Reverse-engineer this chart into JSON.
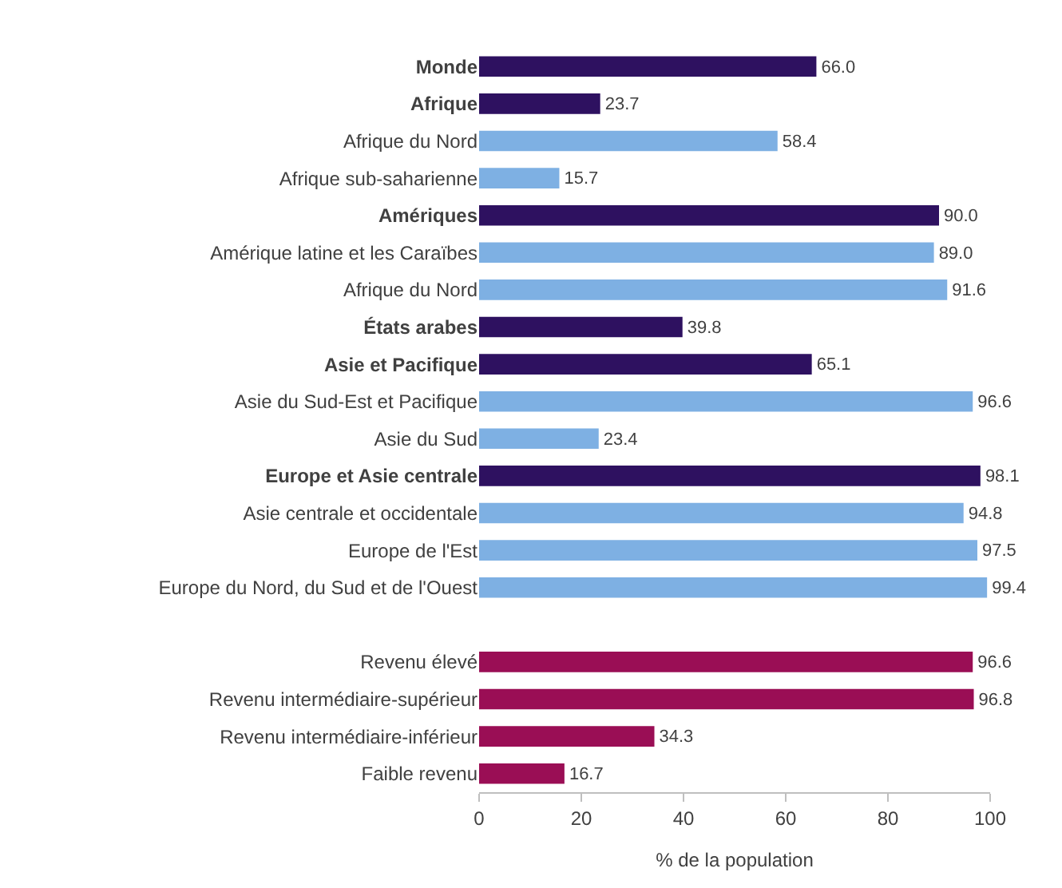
{
  "chart_data": {
    "type": "bar",
    "orientation": "horizontal",
    "xlabel": "% de la population",
    "categories": [
      "Monde",
      "Afrique",
      "Afrique du Nord",
      "Afrique sub-saharienne",
      "Amériques",
      "Amérique latine et les Caraïbes",
      "Afrique du Nord",
      "États arabes",
      "Asie et Pacifique",
      "Asie du Sud-Est et Pacifique",
      "Asie du Sud",
      "Europe et Asie centrale",
      "Asie centrale et occidentale",
      "Europe de l'Est",
      "Europe du Nord, du Sud et de l'Ouest",
      null,
      "Revenu élevé",
      "Revenu intermédiaire-supérieur",
      "Revenu intermédiaire-inférieur",
      "Faible revenu"
    ],
    "values": [
      66.0,
      23.7,
      58.4,
      15.7,
      90.0,
      89.0,
      91.6,
      39.8,
      65.1,
      96.6,
      23.4,
      98.1,
      94.8,
      97.5,
      99.4,
      null,
      96.6,
      96.8,
      34.3,
      16.7
    ],
    "value_labels": [
      "66.0",
      "23.7",
      "58.4",
      "15.7",
      "90.0",
      "89.0",
      "91.6",
      "39.8",
      "65.1",
      "96.6",
      "23.4",
      "98.1",
      "94.8",
      "97.5",
      "99.4",
      null,
      "96.6",
      "96.8",
      "34.3",
      "16.7"
    ],
    "colors": [
      "#2e1160",
      "#2e1160",
      "#7eb0e3",
      "#7eb0e3",
      "#2e1160",
      "#7eb0e3",
      "#7eb0e3",
      "#2e1160",
      "#2e1160",
      "#7eb0e3",
      "#7eb0e3",
      "#2e1160",
      "#7eb0e3",
      "#7eb0e3",
      "#7eb0e3",
      "#ffffff",
      "#9a0e55",
      "#9a0e55",
      "#9a0e55",
      "#9a0e55"
    ],
    "xlim": [
      0,
      100
    ],
    "xticks": [
      0,
      20,
      40,
      60,
      80,
      100
    ]
  }
}
